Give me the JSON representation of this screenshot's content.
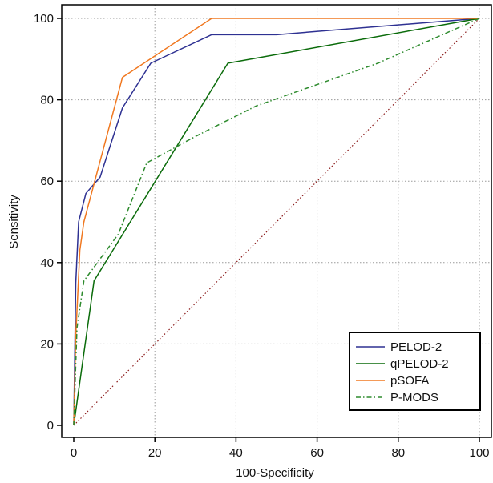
{
  "chart_data": {
    "type": "line",
    "title": "",
    "xlabel": "100-Specificity",
    "ylabel": "Sensitivity",
    "xlim": [
      0,
      100
    ],
    "ylim": [
      0,
      100
    ],
    "xticks": [
      "0",
      "20",
      "40",
      "60",
      "80",
      "100"
    ],
    "yticks": [
      "0",
      "20",
      "40",
      "60",
      "80",
      "100"
    ],
    "grid": true,
    "legend_position": "bottom-right",
    "series": [
      {
        "name": "PELOD-2",
        "color": "#2e3192",
        "dash": "solid",
        "points": [
          [
            0,
            0
          ],
          [
            0.5,
            35
          ],
          [
            1.2,
            50
          ],
          [
            3,
            57
          ],
          [
            6.5,
            61
          ],
          [
            12,
            78
          ],
          [
            19,
            89
          ],
          [
            34,
            96
          ],
          [
            50,
            96
          ],
          [
            100,
            100
          ]
        ]
      },
      {
        "name": "qPELOD-2",
        "color": "#0a6b0a",
        "dash": "solid",
        "points": [
          [
            0,
            0
          ],
          [
            5,
            35.5
          ],
          [
            38,
            89
          ],
          [
            100,
            100
          ]
        ]
      },
      {
        "name": "pSOFA",
        "color": "#f07820",
        "dash": "solid",
        "points": [
          [
            0,
            0
          ],
          [
            0.5,
            22
          ],
          [
            1.5,
            43
          ],
          [
            2.5,
            50
          ],
          [
            12,
            85.5
          ],
          [
            34,
            100
          ],
          [
            100,
            100
          ]
        ]
      },
      {
        "name": "P-MODS",
        "color": "#2e8b2e",
        "dash": "dashdot",
        "points": [
          [
            0,
            0
          ],
          [
            0.8,
            24
          ],
          [
            2.5,
            35.5
          ],
          [
            11,
            47
          ],
          [
            18,
            64.5
          ],
          [
            30,
            71
          ],
          [
            45,
            78.5
          ],
          [
            75,
            89
          ],
          [
            100,
            100
          ]
        ]
      }
    ],
    "reference_line": {
      "color": "#8b1a1a",
      "dash": "dotted",
      "points": [
        [
          0,
          0
        ],
        [
          100,
          100
        ]
      ]
    }
  }
}
